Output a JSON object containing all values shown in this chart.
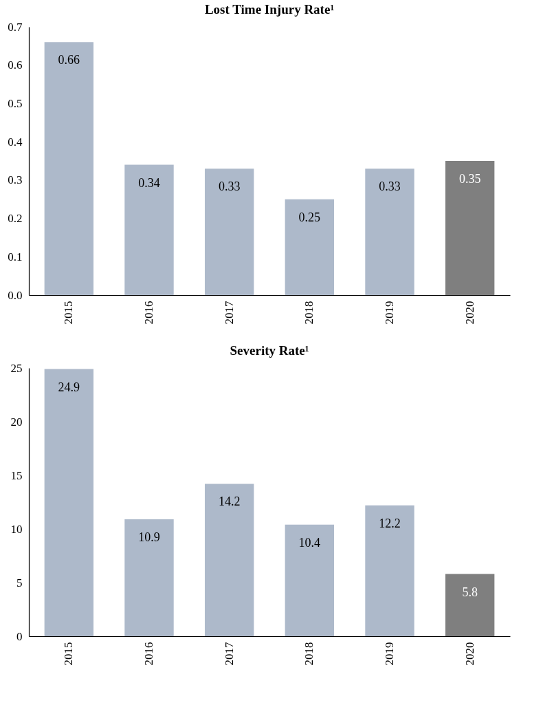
{
  "chart_data": [
    {
      "type": "bar",
      "title": "Lost Time Injury Rate¹",
      "categories": [
        "2015",
        "2016",
        "2017",
        "2018",
        "2019",
        "2020"
      ],
      "values": [
        0.66,
        0.34,
        0.33,
        0.25,
        0.33,
        0.35
      ],
      "colors": [
        "#adb9ca",
        "#adb9ca",
        "#adb9ca",
        "#adb9ca",
        "#adb9ca",
        "#7f7f7f"
      ],
      "ylim": [
        0,
        0.7
      ],
      "yticks": [
        {
          "value": 0,
          "label": "0.0"
        },
        0.1,
        0.2,
        0.3,
        0.4,
        0.5,
        0.6,
        0.7
      ],
      "data_labels": true,
      "grid": false
    },
    {
      "type": "bar",
      "title": "Severity Rate¹",
      "categories": [
        "2015",
        "2016",
        "2017",
        "2018",
        "2019",
        "2020"
      ],
      "values": [
        24.9,
        10.9,
        14.2,
        10.4,
        12.2,
        5.8
      ],
      "colors": [
        "#adb9ca",
        "#adb9ca",
        "#adb9ca",
        "#adb9ca",
        "#adb9ca",
        "#7f7f7f"
      ],
      "ylim": [
        0,
        25
      ],
      "yticks": [
        0,
        5,
        10,
        15,
        20,
        25
      ],
      "data_labels": true,
      "grid": false
    }
  ]
}
